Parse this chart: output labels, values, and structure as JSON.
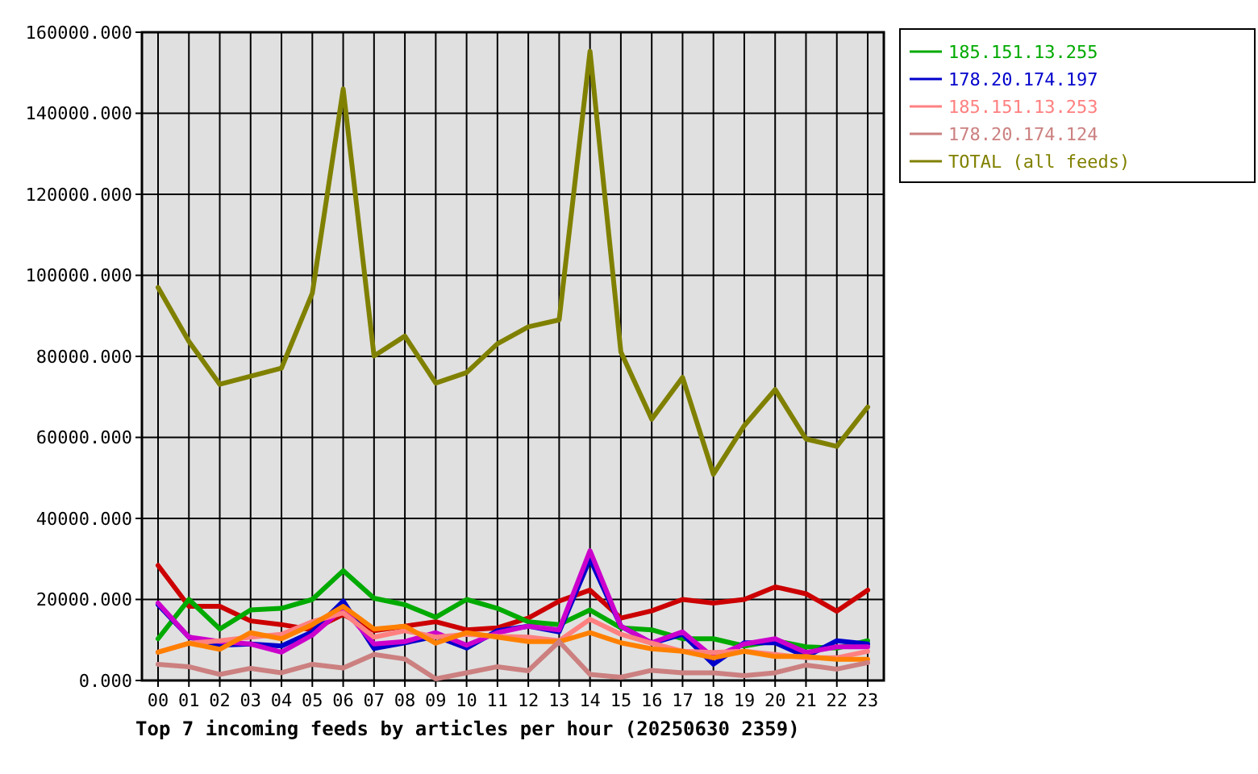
{
  "chart_data": {
    "type": "line",
    "title": "Top 7 incoming feeds by articles per hour (20250630 2359)",
    "categories": [
      "00",
      "01",
      "02",
      "03",
      "04",
      "05",
      "06",
      "07",
      "08",
      "09",
      "10",
      "11",
      "12",
      "13",
      "14",
      "15",
      "16",
      "17",
      "18",
      "19",
      "20",
      "21",
      "22",
      "23"
    ],
    "series": [
      {
        "color": "#cc0000",
        "values": [
          28400,
          18300,
          18300,
          14700,
          13800,
          12500,
          16300,
          12300,
          13400,
          14500,
          12500,
          13000,
          15400,
          19600,
          22300,
          15400,
          17200,
          20000,
          19100,
          20000,
          23100,
          21400,
          17100,
          22300
        ]
      },
      {
        "name": "185.151.13.255",
        "color": "#00aa00",
        "values": [
          10300,
          20000,
          12700,
          17400,
          17800,
          20000,
          27100,
          20300,
          18700,
          15600,
          20000,
          17800,
          14500,
          13800,
          17400,
          13000,
          12500,
          10300,
          10300,
          8500,
          9800,
          8300,
          8000,
          9800
        ]
      },
      {
        "name": "178.20.174.197",
        "color": "#0000cc",
        "values": [
          18700,
          10700,
          8700,
          9000,
          8500,
          12000,
          19600,
          7900,
          9300,
          10900,
          8000,
          12300,
          13400,
          12000,
          30000,
          13400,
          9200,
          11400,
          4000,
          9300,
          9300,
          5900,
          9800,
          9000
        ]
      },
      {
        "color": "#cc00cc",
        "values": [
          19100,
          10700,
          9600,
          9000,
          7000,
          11200,
          17800,
          9000,
          9600,
          11800,
          8700,
          11800,
          13400,
          12500,
          32000,
          13400,
          9300,
          12000,
          5700,
          9000,
          10300,
          6900,
          8300,
          8300
        ]
      },
      {
        "name": "185.151.13.253",
        "color": "#ff8080",
        "values": [
          7000,
          9200,
          9800,
          10700,
          11400,
          14500,
          16700,
          10700,
          12300,
          10700,
          11400,
          10900,
          10700,
          9800,
          15100,
          11400,
          9200,
          7200,
          6900,
          7200,
          6400,
          5600,
          5600,
          7200
        ]
      },
      {
        "color": "#ff8000",
        "values": [
          7000,
          9200,
          7700,
          11800,
          10300,
          13800,
          18300,
          12700,
          13400,
          9200,
          11800,
          10700,
          9600,
          9600,
          11800,
          9300,
          7800,
          7200,
          5600,
          7200,
          5900,
          5900,
          5200,
          5200
        ]
      },
      {
        "name": "178.20.174.124",
        "color": "#cc8080",
        "values": [
          4000,
          3400,
          1500,
          3000,
          1900,
          4000,
          3100,
          6400,
          5300,
          400,
          1900,
          3400,
          2400,
          9600,
          1500,
          800,
          2500,
          1900,
          1900,
          1200,
          1900,
          3800,
          2800,
          4400
        ]
      },
      {
        "name": "TOTAL (all feeds)",
        "color": "#808000",
        "values": [
          97000,
          83700,
          73100,
          75100,
          77100,
          95600,
          146000,
          80100,
          85000,
          73400,
          76000,
          83100,
          87300,
          89000,
          155300,
          81100,
          64500,
          74800,
          50900,
          62900,
          71800,
          59600,
          57800,
          67500
        ]
      }
    ],
    "ylim": [
      0,
      160000
    ],
    "yticks": [
      {
        "value": 0,
        "label": "0.000"
      },
      {
        "value": 20000,
        "label": "20000.000"
      },
      {
        "value": 40000,
        "label": "40000.000"
      },
      {
        "value": 60000,
        "label": "60000.000"
      },
      {
        "value": 80000,
        "label": "80000.000"
      },
      {
        "value": 100000,
        "label": "100000.000"
      },
      {
        "value": 120000,
        "label": "120000.000"
      },
      {
        "value": 140000,
        "label": "140000.000"
      },
      {
        "value": 160000,
        "label": "160000.000"
      }
    ],
    "grid": true,
    "legend": "top right"
  }
}
